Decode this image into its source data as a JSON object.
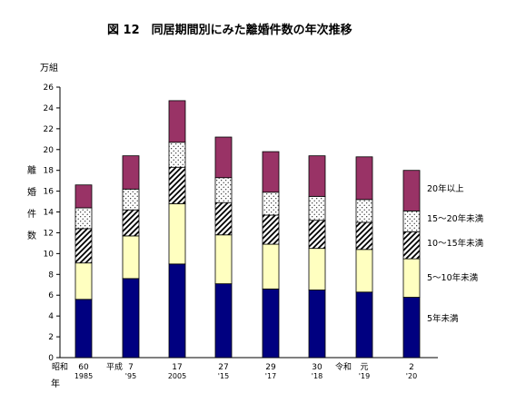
{
  "chart_data": {
    "type": "bar",
    "stacked": true,
    "title": "図 12　同居期間別にみた離婚件数の年次推移",
    "ylabel_unit": "万組",
    "ylabel_chars": [
      "離",
      "婚",
      "件",
      "数"
    ],
    "xlabel_char": "年",
    "ylim": [
      0,
      26
    ],
    "yticks": [
      0,
      2,
      4,
      6,
      8,
      10,
      12,
      14,
      16,
      18,
      20,
      22,
      24,
      26
    ],
    "grid": false,
    "legend": "right",
    "era_labels": [
      "昭和",
      "平成",
      "令和"
    ],
    "categories": [
      {
        "line1": "60",
        "line2": "1985"
      },
      {
        "line1": "7",
        "line2": "'95"
      },
      {
        "line1": "17",
        "line2": "2005"
      },
      {
        "line1": "27",
        "line2": "'15"
      },
      {
        "line1": "29",
        "line2": "'17"
      },
      {
        "line1": "30",
        "line2": "'18"
      },
      {
        "line1": "元",
        "line2": "'19"
      },
      {
        "line1": "2",
        "line2": "'20"
      }
    ],
    "series": [
      {
        "name": "5年未満",
        "values": [
          5.6,
          7.6,
          9.0,
          7.1,
          6.6,
          6.5,
          6.3,
          5.8
        ]
      },
      {
        "name": "5～10年未満",
        "values": [
          3.5,
          4.1,
          5.8,
          4.7,
          4.3,
          4.0,
          4.1,
          3.7
        ]
      },
      {
        "name": "10～15年未満",
        "values": [
          3.3,
          2.5,
          3.5,
          3.1,
          2.8,
          2.7,
          2.6,
          2.6
        ]
      },
      {
        "name": "15～20年未満",
        "values": [
          2.0,
          2.0,
          2.4,
          2.4,
          2.2,
          2.3,
          2.2,
          2.0
        ]
      },
      {
        "name": "20年以上",
        "values": [
          2.2,
          3.2,
          4.0,
          3.9,
          3.9,
          3.9,
          4.1,
          3.9
        ]
      }
    ],
    "colors": [
      "#000080",
      "#ffffc0",
      "hatch",
      "dots",
      "#993366"
    ]
  }
}
